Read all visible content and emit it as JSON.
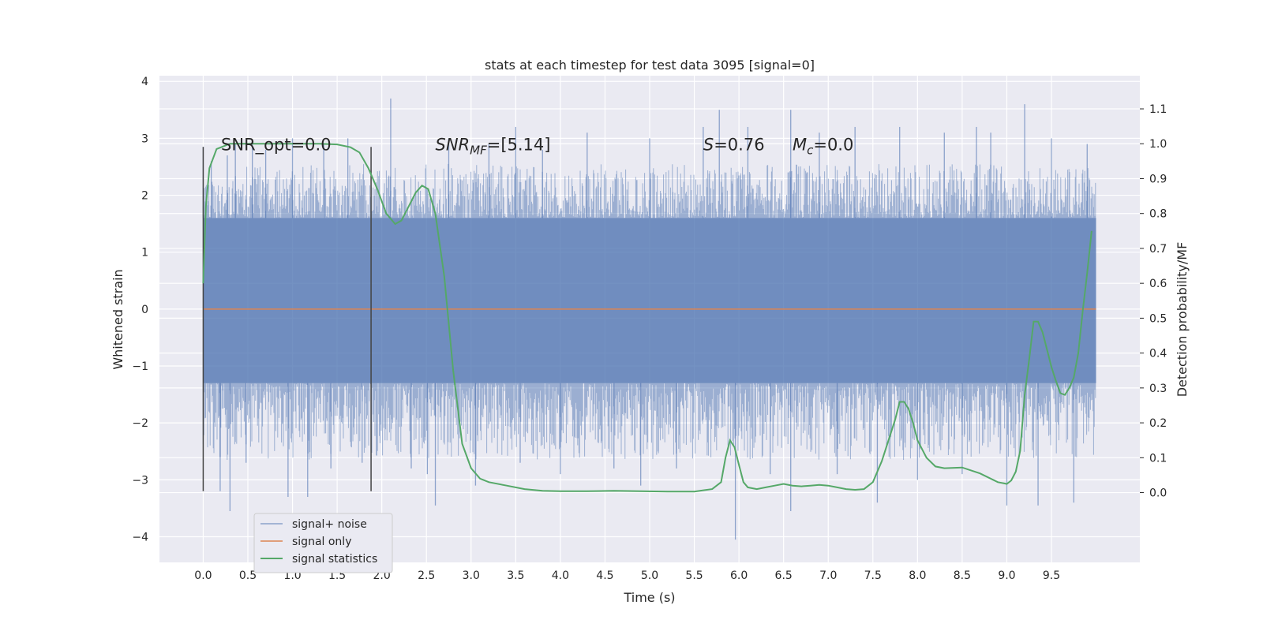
{
  "chart_data": {
    "type": "line",
    "title": "stats at each timestep for test data 3095 [signal=0]",
    "xlabel": "Time (s)",
    "ylabel": "Whitened strain",
    "y2label": "Detection probability/MF",
    "xlim": [
      -0.49,
      10.49
    ],
    "ylim": [
      -4.45,
      4.1
    ],
    "y2lim": [
      -0.2,
      1.195
    ],
    "x_ticks": [
      "0.0",
      "0.5",
      "1.0",
      "1.5",
      "2.0",
      "2.5",
      "3.0",
      "3.5",
      "4.0",
      "4.5",
      "5.0",
      "5.5",
      "6.0",
      "6.5",
      "7.0",
      "7.5",
      "8.0",
      "8.5",
      "9.0",
      "9.5"
    ],
    "y_ticks": [
      "4",
      "3",
      "2",
      "1",
      "0",
      "−1",
      "−2",
      "−3",
      "−4"
    ],
    "y2_ticks": [
      "1.1",
      "1.0",
      "0.9",
      "0.8",
      "0.7",
      "0.6",
      "0.5",
      "0.4",
      "0.3",
      "0.2",
      "0.1",
      "0.0"
    ],
    "grid": true,
    "legend_position": "lower-left",
    "annotations": [
      {
        "text": "SNR_opt=0.0",
        "x": 0.2,
        "y": 2.9
      },
      {
        "text": "SNR_MF=[5.14]",
        "x": 2.6,
        "y": 2.9
      },
      {
        "text": "S=0.76",
        "x": 5.6,
        "y": 2.9
      },
      {
        "text": "M_c=0.0",
        "x": 6.6,
        "y": 2.9
      }
    ],
    "vlines": [
      {
        "x": 0.0,
        "y": [
          -3.2,
          2.85
        ]
      },
      {
        "x": 1.88,
        "y": [
          -3.2,
          2.85
        ]
      }
    ],
    "noise_envelope": {
      "x_range": [
        0.0,
        10.0
      ],
      "band_low": -1.3,
      "band_high": 1.6,
      "dense_low": -2.3,
      "dense_high": 2.2
    },
    "noise_peaks": [
      {
        "x": 0.0,
        "y": 2.85
      },
      {
        "x": 0.09,
        "y": 2.6
      },
      {
        "x": 0.19,
        "y": -2.6
      },
      {
        "x": 0.27,
        "y": 2.7
      },
      {
        "x": 0.19,
        "y": -3.2
      },
      {
        "x": 0.3,
        "y": -3.55
      },
      {
        "x": 0.36,
        "y": 2.9
      },
      {
        "x": 0.48,
        "y": -2.7
      },
      {
        "x": 0.55,
        "y": 2.9
      },
      {
        "x": 0.7,
        "y": 2.8
      },
      {
        "x": 0.95,
        "y": -3.3
      },
      {
        "x": 1.0,
        "y": 3.0
      },
      {
        "x": 1.17,
        "y": -3.3
      },
      {
        "x": 1.35,
        "y": 2.9
      },
      {
        "x": 1.43,
        "y": -2.8
      },
      {
        "x": 1.62,
        "y": 3.0
      },
      {
        "x": 1.78,
        "y": -2.7
      },
      {
        "x": 2.1,
        "y": 3.7
      },
      {
        "x": 2.33,
        "y": -2.8
      },
      {
        "x": 2.51,
        "y": -2.9
      },
      {
        "x": 2.6,
        "y": -3.45
      },
      {
        "x": 2.75,
        "y": 3.0
      },
      {
        "x": 3.05,
        "y": -3.1
      },
      {
        "x": 3.2,
        "y": 2.9
      },
      {
        "x": 3.5,
        "y": 3.2
      },
      {
        "x": 3.55,
        "y": -2.7
      },
      {
        "x": 3.8,
        "y": 2.8
      },
      {
        "x": 4.0,
        "y": -2.9
      },
      {
        "x": 4.3,
        "y": 3.1
      },
      {
        "x": 4.6,
        "y": -2.8
      },
      {
        "x": 4.9,
        "y": -3.1
      },
      {
        "x": 5.0,
        "y": 3.0
      },
      {
        "x": 5.3,
        "y": -2.8
      },
      {
        "x": 5.6,
        "y": 3.2
      },
      {
        "x": 5.78,
        "y": 3.5
      },
      {
        "x": 5.96,
        "y": -4.05
      },
      {
        "x": 6.1,
        "y": 3.2
      },
      {
        "x": 6.35,
        "y": -2.9
      },
      {
        "x": 6.58,
        "y": 3.5
      },
      {
        "x": 6.58,
        "y": -3.55
      },
      {
        "x": 6.9,
        "y": 3.1
      },
      {
        "x": 7.1,
        "y": -2.9
      },
      {
        "x": 7.3,
        "y": 3.2
      },
      {
        "x": 7.55,
        "y": -3.4
      },
      {
        "x": 7.8,
        "y": 3.2
      },
      {
        "x": 8.0,
        "y": -3.0
      },
      {
        "x": 8.3,
        "y": 3.1
      },
      {
        "x": 8.5,
        "y": -2.9
      },
      {
        "x": 8.66,
        "y": 3.2
      },
      {
        "x": 8.82,
        "y": 3.1
      },
      {
        "x": 9.0,
        "y": -3.45
      },
      {
        "x": 9.2,
        "y": 3.6
      },
      {
        "x": 9.35,
        "y": -3.45
      },
      {
        "x": 9.5,
        "y": 3.0
      },
      {
        "x": 9.75,
        "y": -3.4
      },
      {
        "x": 9.9,
        "y": 2.9
      }
    ],
    "series": [
      {
        "name": "signal+ noise",
        "axis": "left",
        "color": "#4c72b0",
        "style": "noise"
      },
      {
        "name": "signal only",
        "axis": "left",
        "color": "#dd8452",
        "x": [
          0.0,
          10.0
        ],
        "y": [
          0.0,
          0.0
        ]
      },
      {
        "name": "signal statistics",
        "axis": "right",
        "color": "#55a868",
        "x": [
          0.0,
          0.03,
          0.07,
          0.15,
          0.3,
          0.6,
          1.0,
          1.3,
          1.5,
          1.65,
          1.75,
          1.85,
          1.95,
          2.05,
          2.15,
          2.22,
          2.3,
          2.38,
          2.45,
          2.52,
          2.6,
          2.7,
          2.8,
          2.9,
          3.0,
          3.1,
          3.2,
          3.4,
          3.6,
          3.8,
          4.0,
          4.3,
          4.6,
          4.9,
          5.2,
          5.5,
          5.7,
          5.8,
          5.85,
          5.9,
          5.95,
          6.0,
          6.05,
          6.1,
          6.2,
          6.3,
          6.4,
          6.5,
          6.6,
          6.7,
          6.8,
          6.9,
          7.0,
          7.1,
          7.2,
          7.3,
          7.4,
          7.5,
          7.6,
          7.7,
          7.75,
          7.8,
          7.85,
          7.9,
          7.95,
          8.0,
          8.1,
          8.2,
          8.3,
          8.5,
          8.7,
          8.9,
          9.0,
          9.05,
          9.1,
          9.15,
          9.2,
          9.25,
          9.3,
          9.35,
          9.4,
          9.45,
          9.5,
          9.55,
          9.6,
          9.65,
          9.7,
          9.75,
          9.8,
          9.85,
          9.9,
          9.95
        ],
        "y": [
          0.6,
          0.82,
          0.93,
          0.985,
          1.0,
          1.0,
          1.0,
          1.0,
          0.998,
          0.99,
          0.975,
          0.93,
          0.87,
          0.8,
          0.77,
          0.78,
          0.82,
          0.86,
          0.88,
          0.87,
          0.8,
          0.62,
          0.35,
          0.14,
          0.07,
          0.04,
          0.03,
          0.02,
          0.01,
          0.005,
          0.004,
          0.004,
          0.005,
          0.004,
          0.003,
          0.003,
          0.01,
          0.03,
          0.1,
          0.15,
          0.13,
          0.08,
          0.03,
          0.015,
          0.01,
          0.015,
          0.02,
          0.025,
          0.02,
          0.018,
          0.02,
          0.022,
          0.02,
          0.015,
          0.01,
          0.008,
          0.01,
          0.03,
          0.09,
          0.17,
          0.21,
          0.26,
          0.26,
          0.24,
          0.2,
          0.15,
          0.1,
          0.075,
          0.07,
          0.072,
          0.055,
          0.03,
          0.025,
          0.035,
          0.06,
          0.12,
          0.28,
          0.38,
          0.49,
          0.49,
          0.46,
          0.41,
          0.36,
          0.32,
          0.285,
          0.28,
          0.3,
          0.33,
          0.4,
          0.52,
          0.63,
          0.75
        ]
      }
    ]
  }
}
